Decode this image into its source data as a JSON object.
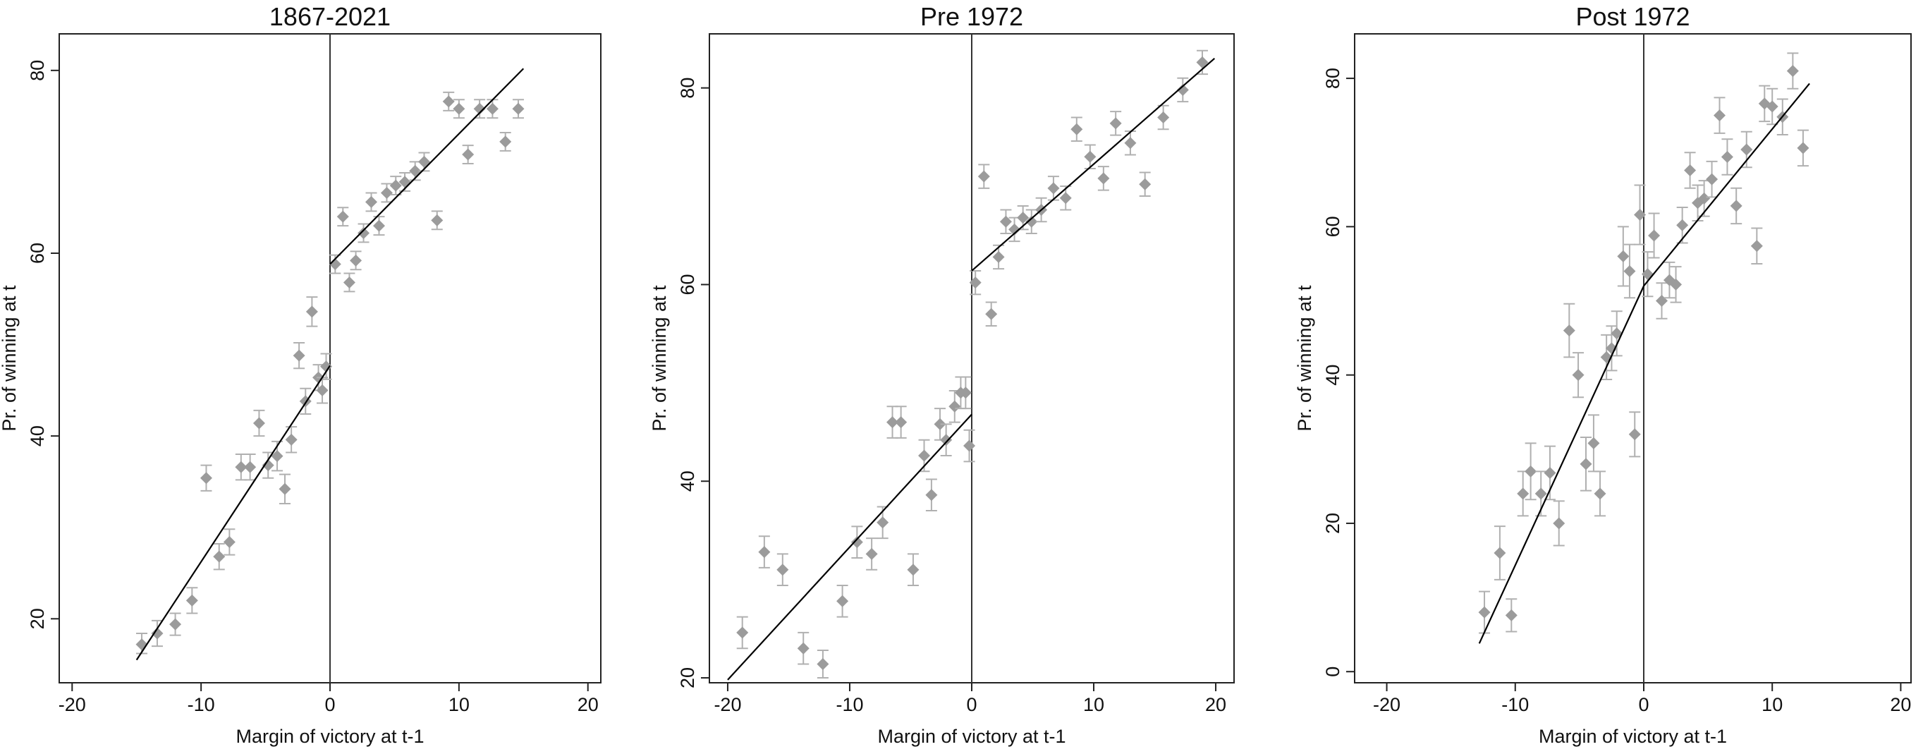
{
  "colors": {
    "marker": "#9b9b9b",
    "errorbar": "#b0b0b0",
    "fit_line": "#000000",
    "vline": "#333333"
  },
  "chart_data": [
    {
      "type": "scatter",
      "title": "1867-2021",
      "xlabel": "Margin of victory at t-1",
      "ylabel": "Pr. of winning at t",
      "xlim": [
        -21,
        21
      ],
      "ylim": [
        13,
        84
      ],
      "xticks": [
        -20,
        -10,
        0,
        10,
        20
      ],
      "yticks": [
        20,
        40,
        60,
        80
      ],
      "grid": false,
      "vline": 0,
      "points": [
        {
          "x": -14.6,
          "y": 17.2,
          "ylo": 16.2,
          "yhi": 18.4
        },
        {
          "x": -13.4,
          "y": 18.4,
          "ylo": 17.0,
          "yhi": 19.8
        },
        {
          "x": -12.0,
          "y": 19.4,
          "ylo": 18.2,
          "yhi": 20.6
        },
        {
          "x": -10.7,
          "y": 22.0,
          "ylo": 20.6,
          "yhi": 23.4
        },
        {
          "x": -9.6,
          "y": 35.4,
          "ylo": 34.0,
          "yhi": 36.8
        },
        {
          "x": -8.6,
          "y": 26.8,
          "ylo": 25.4,
          "yhi": 28.2
        },
        {
          "x": -7.8,
          "y": 28.4,
          "ylo": 27.0,
          "yhi": 29.8
        },
        {
          "x": -6.9,
          "y": 36.6,
          "ylo": 35.2,
          "yhi": 38.0
        },
        {
          "x": -6.2,
          "y": 36.6,
          "ylo": 35.2,
          "yhi": 38.0
        },
        {
          "x": -5.5,
          "y": 41.4,
          "ylo": 40.0,
          "yhi": 42.8
        },
        {
          "x": -4.8,
          "y": 36.8,
          "ylo": 35.4,
          "yhi": 38.2
        },
        {
          "x": -4.1,
          "y": 37.8,
          "ylo": 36.2,
          "yhi": 39.4
        },
        {
          "x": -3.5,
          "y": 34.2,
          "ylo": 32.6,
          "yhi": 35.8
        },
        {
          "x": -3.0,
          "y": 39.6,
          "ylo": 38.2,
          "yhi": 41.0
        },
        {
          "x": -2.4,
          "y": 48.8,
          "ylo": 47.4,
          "yhi": 50.2
        },
        {
          "x": -1.9,
          "y": 43.8,
          "ylo": 42.4,
          "yhi": 45.2
        },
        {
          "x": -1.4,
          "y": 53.6,
          "ylo": 52.0,
          "yhi": 55.2
        },
        {
          "x": -0.9,
          "y": 46.4,
          "ylo": 45.0,
          "yhi": 47.8
        },
        {
          "x": -0.6,
          "y": 45.0,
          "ylo": 43.6,
          "yhi": 46.4
        },
        {
          "x": -0.3,
          "y": 47.6,
          "ylo": 46.2,
          "yhi": 49.0
        },
        {
          "x": 0.4,
          "y": 58.8,
          "ylo": 57.8,
          "yhi": 59.8
        },
        {
          "x": 1.0,
          "y": 64.0,
          "ylo": 63.0,
          "yhi": 65.0
        },
        {
          "x": 1.5,
          "y": 56.8,
          "ylo": 55.8,
          "yhi": 57.8
        },
        {
          "x": 2.0,
          "y": 59.2,
          "ylo": 58.2,
          "yhi": 60.2
        },
        {
          "x": 2.6,
          "y": 62.2,
          "ylo": 61.2,
          "yhi": 63.2
        },
        {
          "x": 3.2,
          "y": 65.6,
          "ylo": 64.6,
          "yhi": 66.6
        },
        {
          "x": 3.8,
          "y": 63.0,
          "ylo": 62.0,
          "yhi": 64.0
        },
        {
          "x": 4.4,
          "y": 66.6,
          "ylo": 65.6,
          "yhi": 67.6
        },
        {
          "x": 5.1,
          "y": 67.4,
          "ylo": 66.4,
          "yhi": 68.4
        },
        {
          "x": 5.8,
          "y": 67.8,
          "ylo": 66.8,
          "yhi": 68.8
        },
        {
          "x": 6.6,
          "y": 69.0,
          "ylo": 68.0,
          "yhi": 70.0
        },
        {
          "x": 7.3,
          "y": 70.0,
          "ylo": 69.0,
          "yhi": 71.0
        },
        {
          "x": 8.3,
          "y": 63.6,
          "ylo": 62.6,
          "yhi": 64.6
        },
        {
          "x": 9.2,
          "y": 76.6,
          "ylo": 75.6,
          "yhi": 77.6
        },
        {
          "x": 10.0,
          "y": 75.8,
          "ylo": 74.8,
          "yhi": 76.8
        },
        {
          "x": 10.7,
          "y": 70.8,
          "ylo": 69.8,
          "yhi": 71.8
        },
        {
          "x": 11.6,
          "y": 75.8,
          "ylo": 74.8,
          "yhi": 76.8
        },
        {
          "x": 12.6,
          "y": 75.8,
          "ylo": 74.8,
          "yhi": 76.8
        },
        {
          "x": 13.6,
          "y": 72.2,
          "ylo": 71.2,
          "yhi": 73.2
        },
        {
          "x": 14.6,
          "y": 75.8,
          "ylo": 74.8,
          "yhi": 76.8
        }
      ],
      "fit_left": [
        [
          -15,
          15.5
        ],
        [
          0,
          47.7
        ]
      ],
      "fit_right": [
        [
          0,
          58.8
        ],
        [
          15,
          80.2
        ]
      ]
    },
    {
      "type": "scatter",
      "title": "Pre 1972",
      "xlabel": "Margin of victory at t-1",
      "ylabel": "Pr. of winning at t",
      "xlim": [
        -21.5,
        21.5
      ],
      "ylim": [
        19.5,
        85.5
      ],
      "xticks": [
        -20,
        -10,
        0,
        10,
        20
      ],
      "yticks": [
        20,
        40,
        60,
        80
      ],
      "grid": false,
      "vline": 0,
      "points": [
        {
          "x": -18.8,
          "y": 24.6,
          "ylo": 23.0,
          "yhi": 26.2
        },
        {
          "x": -17.0,
          "y": 32.8,
          "ylo": 31.2,
          "yhi": 34.4
        },
        {
          "x": -15.5,
          "y": 31.0,
          "ylo": 29.4,
          "yhi": 32.6
        },
        {
          "x": -13.8,
          "y": 23.0,
          "ylo": 21.4,
          "yhi": 24.6
        },
        {
          "x": -12.2,
          "y": 21.4,
          "ylo": 20.0,
          "yhi": 22.8
        },
        {
          "x": -10.6,
          "y": 27.8,
          "ylo": 26.2,
          "yhi": 29.4
        },
        {
          "x": -9.4,
          "y": 33.8,
          "ylo": 32.2,
          "yhi": 35.4
        },
        {
          "x": -8.2,
          "y": 32.6,
          "ylo": 31.0,
          "yhi": 34.2
        },
        {
          "x": -7.3,
          "y": 35.8,
          "ylo": 34.2,
          "yhi": 37.4
        },
        {
          "x": -6.5,
          "y": 46.0,
          "ylo": 44.4,
          "yhi": 47.6
        },
        {
          "x": -5.8,
          "y": 46.0,
          "ylo": 44.4,
          "yhi": 47.6
        },
        {
          "x": -4.8,
          "y": 31.0,
          "ylo": 29.4,
          "yhi": 32.6
        },
        {
          "x": -3.9,
          "y": 42.6,
          "ylo": 41.0,
          "yhi": 44.2
        },
        {
          "x": -3.3,
          "y": 38.6,
          "ylo": 37.0,
          "yhi": 40.2
        },
        {
          "x": -2.6,
          "y": 45.8,
          "ylo": 44.2,
          "yhi": 47.4
        },
        {
          "x": -2.1,
          "y": 44.2,
          "ylo": 42.6,
          "yhi": 45.8
        },
        {
          "x": -1.4,
          "y": 47.6,
          "ylo": 46.0,
          "yhi": 49.2
        },
        {
          "x": -0.9,
          "y": 49.0,
          "ylo": 47.4,
          "yhi": 50.6
        },
        {
          "x": -0.5,
          "y": 49.0,
          "ylo": 47.4,
          "yhi": 50.6
        },
        {
          "x": -0.2,
          "y": 43.6,
          "ylo": 42.0,
          "yhi": 45.2
        },
        {
          "x": 0.3,
          "y": 60.2,
          "ylo": 59.0,
          "yhi": 61.4
        },
        {
          "x": 1.0,
          "y": 71.0,
          "ylo": 69.8,
          "yhi": 72.2
        },
        {
          "x": 1.6,
          "y": 57.0,
          "ylo": 55.8,
          "yhi": 58.2
        },
        {
          "x": 2.2,
          "y": 62.8,
          "ylo": 61.6,
          "yhi": 64.0
        },
        {
          "x": 2.8,
          "y": 66.4,
          "ylo": 65.2,
          "yhi": 67.6
        },
        {
          "x": 3.5,
          "y": 65.6,
          "ylo": 64.4,
          "yhi": 66.8
        },
        {
          "x": 4.2,
          "y": 66.8,
          "ylo": 65.6,
          "yhi": 68.0
        },
        {
          "x": 4.9,
          "y": 66.4,
          "ylo": 65.2,
          "yhi": 67.6
        },
        {
          "x": 5.7,
          "y": 67.6,
          "ylo": 66.4,
          "yhi": 68.8
        },
        {
          "x": 6.7,
          "y": 69.8,
          "ylo": 68.6,
          "yhi": 71.0
        },
        {
          "x": 7.7,
          "y": 68.8,
          "ylo": 67.6,
          "yhi": 70.0
        },
        {
          "x": 8.6,
          "y": 75.8,
          "ylo": 74.6,
          "yhi": 77.0
        },
        {
          "x": 9.7,
          "y": 73.0,
          "ylo": 71.8,
          "yhi": 74.2
        },
        {
          "x": 10.8,
          "y": 70.8,
          "ylo": 69.6,
          "yhi": 72.0
        },
        {
          "x": 11.8,
          "y": 76.4,
          "ylo": 75.2,
          "yhi": 77.6
        },
        {
          "x": 13.0,
          "y": 74.4,
          "ylo": 73.2,
          "yhi": 75.6
        },
        {
          "x": 14.2,
          "y": 70.2,
          "ylo": 69.0,
          "yhi": 71.4
        },
        {
          "x": 15.7,
          "y": 77.0,
          "ylo": 75.8,
          "yhi": 78.2
        },
        {
          "x": 17.3,
          "y": 79.8,
          "ylo": 78.6,
          "yhi": 81.0
        },
        {
          "x": 18.9,
          "y": 82.6,
          "ylo": 81.4,
          "yhi": 83.8
        }
      ],
      "fit_left": [
        [
          -20,
          19.8
        ],
        [
          0,
          46.8
        ]
      ],
      "fit_right": [
        [
          0,
          61.4
        ],
        [
          19.9,
          83.0
        ]
      ]
    },
    {
      "type": "scatter",
      "title": "Post 1972",
      "xlabel": "Margin of victory at t-1",
      "ylabel": "Pr. of winning at t",
      "xlim": [
        -22.5,
        20.8
      ],
      "ylim": [
        -1.5,
        86
      ],
      "xticks": [
        -20,
        -10,
        0,
        10,
        20
      ],
      "yticks": [
        0,
        20,
        40,
        60,
        80
      ],
      "grid": false,
      "vline": 0,
      "points": [
        {
          "x": -12.4,
          "y": 8.0,
          "ylo": 5.2,
          "yhi": 10.8
        },
        {
          "x": -11.2,
          "y": 16.0,
          "ylo": 12.4,
          "yhi": 19.6
        },
        {
          "x": -10.3,
          "y": 7.6,
          "ylo": 5.4,
          "yhi": 9.8
        },
        {
          "x": -9.4,
          "y": 24.0,
          "ylo": 21.0,
          "yhi": 27.0
        },
        {
          "x": -8.8,
          "y": 27.0,
          "ylo": 23.2,
          "yhi": 30.8
        },
        {
          "x": -8.0,
          "y": 24.0,
          "ylo": 21.0,
          "yhi": 27.0
        },
        {
          "x": -7.3,
          "y": 26.8,
          "ylo": 23.2,
          "yhi": 30.4
        },
        {
          "x": -6.6,
          "y": 20.0,
          "ylo": 17.0,
          "yhi": 23.0
        },
        {
          "x": -5.8,
          "y": 46.0,
          "ylo": 42.4,
          "yhi": 49.6
        },
        {
          "x": -5.1,
          "y": 40.0,
          "ylo": 37.0,
          "yhi": 43.0
        },
        {
          "x": -4.5,
          "y": 28.0,
          "ylo": 24.4,
          "yhi": 31.6
        },
        {
          "x": -3.9,
          "y": 30.8,
          "ylo": 27.0,
          "yhi": 34.6
        },
        {
          "x": -3.4,
          "y": 24.0,
          "ylo": 21.0,
          "yhi": 27.0
        },
        {
          "x": -2.9,
          "y": 42.4,
          "ylo": 39.4,
          "yhi": 45.4
        },
        {
          "x": -2.5,
          "y": 43.6,
          "ylo": 40.6,
          "yhi": 46.6
        },
        {
          "x": -2.1,
          "y": 45.6,
          "ylo": 42.6,
          "yhi": 48.6
        },
        {
          "x": -1.6,
          "y": 56.0,
          "ylo": 52.0,
          "yhi": 60.0
        },
        {
          "x": -1.1,
          "y": 54.0,
          "ylo": 50.4,
          "yhi": 57.6
        },
        {
          "x": -0.7,
          "y": 32.0,
          "ylo": 29.0,
          "yhi": 35.0
        },
        {
          "x": -0.3,
          "y": 61.6,
          "ylo": 57.6,
          "yhi": 65.6
        },
        {
          "x": 0.3,
          "y": 53.6,
          "ylo": 50.6,
          "yhi": 56.6
        },
        {
          "x": 0.8,
          "y": 58.8,
          "ylo": 55.8,
          "yhi": 61.8
        },
        {
          "x": 1.4,
          "y": 50.0,
          "ylo": 47.6,
          "yhi": 52.4
        },
        {
          "x": 2.0,
          "y": 52.8,
          "ylo": 50.4,
          "yhi": 55.2
        },
        {
          "x": 2.5,
          "y": 52.2,
          "ylo": 49.8,
          "yhi": 54.6
        },
        {
          "x": 3.0,
          "y": 60.2,
          "ylo": 57.8,
          "yhi": 62.6
        },
        {
          "x": 3.6,
          "y": 67.6,
          "ylo": 65.2,
          "yhi": 70.0
        },
        {
          "x": 4.2,
          "y": 63.2,
          "ylo": 60.8,
          "yhi": 65.6
        },
        {
          "x": 4.7,
          "y": 63.8,
          "ylo": 61.4,
          "yhi": 66.2
        },
        {
          "x": 5.3,
          "y": 66.4,
          "ylo": 64.0,
          "yhi": 68.8
        },
        {
          "x": 5.9,
          "y": 75.0,
          "ylo": 72.6,
          "yhi": 77.4
        },
        {
          "x": 6.5,
          "y": 69.4,
          "ylo": 67.0,
          "yhi": 71.8
        },
        {
          "x": 7.2,
          "y": 62.8,
          "ylo": 60.4,
          "yhi": 65.2
        },
        {
          "x": 8.0,
          "y": 70.4,
          "ylo": 68.0,
          "yhi": 72.8
        },
        {
          "x": 8.8,
          "y": 57.4,
          "ylo": 55.0,
          "yhi": 59.8
        },
        {
          "x": 9.4,
          "y": 76.6,
          "ylo": 74.2,
          "yhi": 79.0
        },
        {
          "x": 10.0,
          "y": 76.2,
          "ylo": 73.8,
          "yhi": 78.6
        },
        {
          "x": 10.8,
          "y": 74.8,
          "ylo": 72.4,
          "yhi": 77.2
        },
        {
          "x": 11.6,
          "y": 81.0,
          "ylo": 78.6,
          "yhi": 83.4
        },
        {
          "x": 12.4,
          "y": 70.6,
          "ylo": 68.2,
          "yhi": 73.0
        }
      ],
      "fit_left": [
        [
          -12.8,
          3.8
        ],
        [
          0,
          52.0
        ]
      ],
      "fit_right": [
        [
          0,
          52.0
        ],
        [
          12.9,
          79.3
        ]
      ]
    }
  ]
}
